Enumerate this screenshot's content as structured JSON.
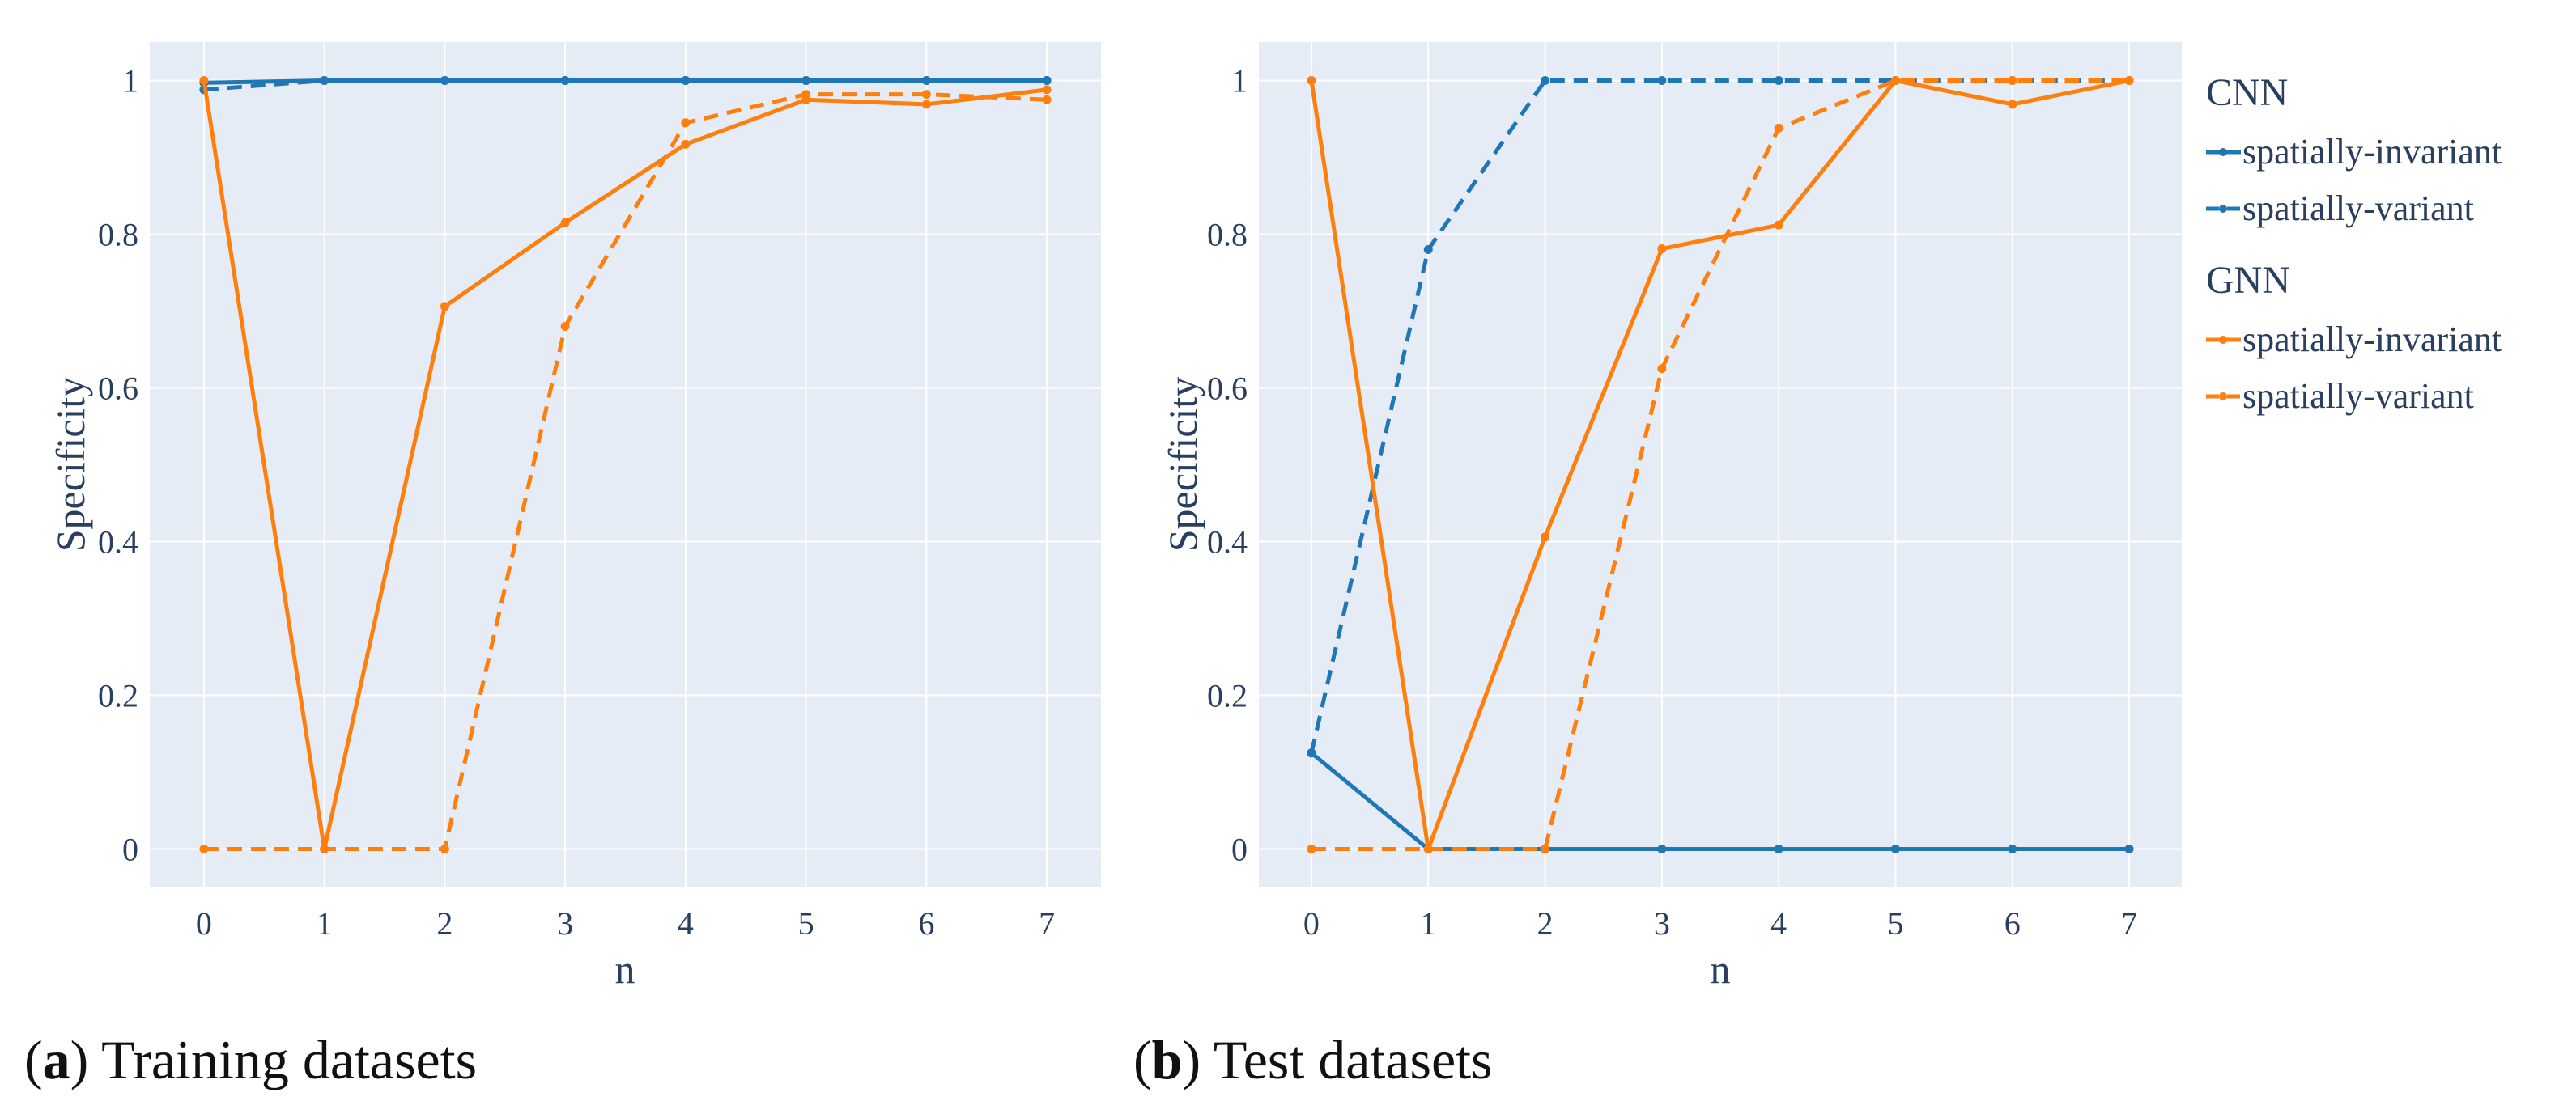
{
  "chart_data": [
    {
      "type": "line",
      "panel_label": "a",
      "caption": "Training datasets",
      "xlabel": "n",
      "ylabel": "Specificity",
      "x": [
        0,
        1,
        2,
        3,
        4,
        5,
        6,
        7
      ],
      "xlim": [
        -0.45,
        7.45
      ],
      "ylim": [
        -0.05,
        1.05
      ],
      "x_ticks": [
        0,
        1,
        2,
        3,
        4,
        5,
        6,
        7
      ],
      "y_ticks": [
        0,
        0.2,
        0.4,
        0.6,
        0.8,
        1
      ],
      "y_tick_labels": [
        "0",
        "0.2",
        "0.4",
        "0.6",
        "0.8",
        "1"
      ],
      "grid": true,
      "series": [
        {
          "group": "CNN",
          "name": "spatially-invariant",
          "color": "#1f77b4",
          "dash": "solid",
          "values": [
            0.997,
            1.0,
            1.0,
            1.0,
            1.0,
            1.0,
            1.0,
            1.0
          ]
        },
        {
          "group": "CNN",
          "name": "spatially-variant",
          "color": "#1f77b4",
          "dash": "dash",
          "values": [
            0.988,
            1.0,
            1.0,
            1.0,
            1.0,
            1.0,
            1.0,
            1.0
          ]
        },
        {
          "group": "GNN",
          "name": "spatially-invariant",
          "color": "#ff7f0e",
          "dash": "solid",
          "values": [
            1.0,
            0.0,
            0.706,
            0.815,
            0.917,
            0.975,
            0.969,
            0.988
          ]
        },
        {
          "group": "GNN",
          "name": "spatially-variant",
          "color": "#ff7f0e",
          "dash": "dash",
          "values": [
            0.0,
            0.0,
            0.0,
            0.68,
            0.945,
            0.982,
            0.982,
            0.975
          ]
        }
      ]
    },
    {
      "type": "line",
      "panel_label": "b",
      "caption": "Test datasets",
      "xlabel": "n",
      "ylabel": "Specificity",
      "x": [
        0,
        1,
        2,
        3,
        4,
        5,
        6,
        7
      ],
      "xlim": [
        -0.45,
        7.45
      ],
      "ylim": [
        -0.05,
        1.05
      ],
      "x_ticks": [
        0,
        1,
        2,
        3,
        4,
        5,
        6,
        7
      ],
      "y_ticks": [
        0,
        0.2,
        0.4,
        0.6,
        0.8,
        1
      ],
      "y_tick_labels": [
        "0",
        "0.2",
        "0.4",
        "0.6",
        "0.8",
        "1"
      ],
      "grid": true,
      "series": [
        {
          "group": "CNN",
          "name": "spatially-invariant",
          "color": "#1f77b4",
          "dash": "solid",
          "values": [
            0.125,
            0.0,
            0.0,
            0.0,
            0.0,
            0.0,
            0.0,
            0.0
          ]
        },
        {
          "group": "CNN",
          "name": "spatially-variant",
          "color": "#1f77b4",
          "dash": "dash",
          "values": [
            0.125,
            0.78,
            1.0,
            1.0,
            1.0,
            1.0,
            1.0,
            1.0
          ]
        },
        {
          "group": "GNN",
          "name": "spatially-invariant",
          "color": "#ff7f0e",
          "dash": "solid",
          "values": [
            1.0,
            0.0,
            0.406,
            0.781,
            0.812,
            1.0,
            0.969,
            1.0
          ]
        },
        {
          "group": "GNN",
          "name": "spatially-variant",
          "color": "#ff7f0e",
          "dash": "dash",
          "values": [
            0.0,
            0.0,
            0.0,
            0.625,
            0.938,
            1.0,
            1.0,
            1.0
          ]
        }
      ]
    }
  ],
  "legend": {
    "position": "right",
    "groups": [
      {
        "title": "CNN",
        "color": "#1f77b4",
        "items": [
          {
            "label": "spatially-invariant",
            "dash": "solid"
          },
          {
            "label": "spatially-variant",
            "dash": "dash"
          }
        ]
      },
      {
        "title": "GNN",
        "color": "#ff7f0e",
        "items": [
          {
            "label": "spatially-invariant",
            "dash": "solid"
          },
          {
            "label": "spatially-variant",
            "dash": "dash"
          }
        ]
      }
    ]
  },
  "colors": {
    "plot_bg": "#e5ecf6",
    "grid": "#ffffff",
    "text": "#2a3f5f"
  }
}
